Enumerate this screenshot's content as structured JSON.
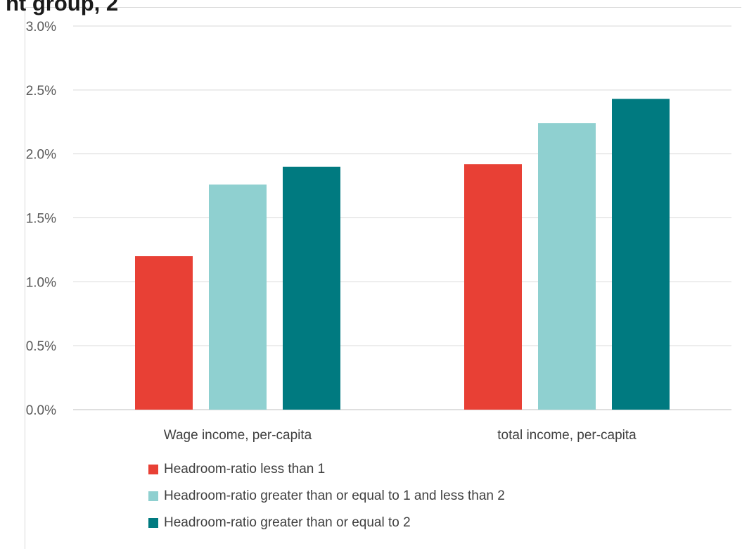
{
  "title": "nt group, 2",
  "chart_data": {
    "type": "bar",
    "categories": [
      "Wage income, per-capita",
      "total income, per-capita"
    ],
    "series": [
      {
        "name": "Headroom-ratio less than 1",
        "color": "#e84035",
        "values": [
          1.2,
          1.92
        ]
      },
      {
        "name": "Headroom-ratio greater than or equal to 1 and less than 2",
        "color": "#8fd0d0",
        "values": [
          1.76,
          2.24
        ]
      },
      {
        "name": "Headroom-ratio greater than or equal to 2",
        "color": "#007a80",
        "values": [
          1.9,
          2.43
        ]
      }
    ],
    "yticks": [
      "0.0%",
      "0.5%",
      "1.0%",
      "1.5%",
      "2.0%",
      "2.5%",
      "3.0%"
    ],
    "ylim": [
      0,
      3
    ],
    "yunit": "%",
    "grid": true,
    "legend_position": "bottom"
  }
}
